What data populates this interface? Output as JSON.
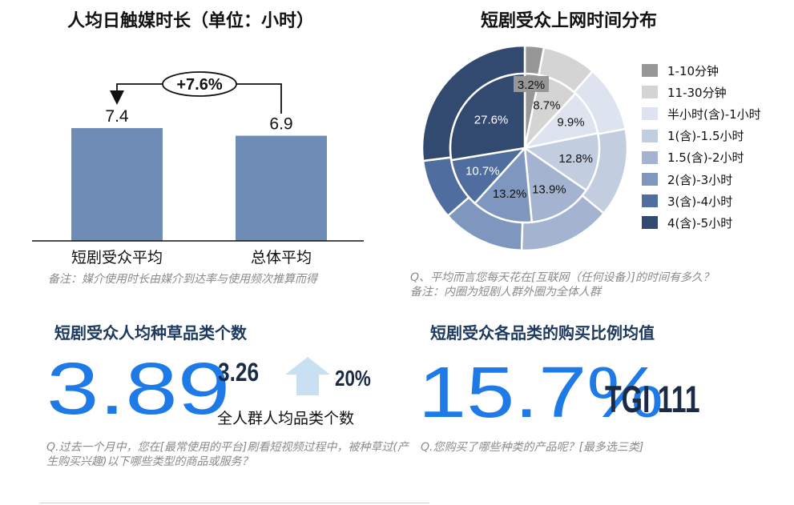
{
  "panel_bar": {
    "title": "人均日触媒时长（单位：小时）",
    "growth_label": "+7.6%",
    "note": "备注：媒介使用时长由媒介到达率与使用频次推算而得"
  },
  "panel_pie": {
    "title": "短剧受众上网时间分布",
    "note_line1": "Q、平均而言您每天花在[互联网（任何设备）]的时间有多久？",
    "note_line2": "备注：内圈为短剧人群外圈为全体人群"
  },
  "panel_grass": {
    "title": "短剧受众人均种草品类个数",
    "main_value": "3.89",
    "compare_value": "3.26",
    "compare_label": "全人群人均品类个数",
    "lift": "20%",
    "note": "Q.过去一个月中，您在[最常使用的平台]刷看短视频过程中，被种草过(产生购买兴趣)以下哪些类型的商品或服务？"
  },
  "panel_buy": {
    "title": "短剧受众各品类的购买比例均值",
    "main_value": "15.7%",
    "tgi": "TGI 111",
    "note": "Q.您购买了哪些种类的产品呢？[最多选三类]"
  },
  "chart_data": [
    {
      "type": "bar",
      "title": "人均日触媒时长（单位：小时）",
      "categories": [
        "短剧受众平均",
        "总体平均"
      ],
      "values": [
        7.4,
        6.9
      ],
      "value_labels": [
        "7.4",
        "6.9"
      ],
      "ylim": [
        0,
        8.4
      ],
      "color": "#6f8cb7",
      "annotation": "+7.6%"
    },
    {
      "type": "pie",
      "title": "短剧受众上网时间分布",
      "categories": [
        "1-10分钟",
        "11-30分钟",
        "半小时(含)-1小时",
        "1(含)-1.5小时",
        "1.5(含)-2小时",
        "2(含)-3小时",
        "3(含)-4小时",
        "4(含)-5小时"
      ],
      "colors": [
        "#979797",
        "#d4d4d4",
        "#dde4ef",
        "#c3cde0",
        "#a4b4d0",
        "#7f96bf",
        "#506d9f",
        "#334a70"
      ],
      "series": [
        {
          "name": "内圈",
          "values": [
            3.2,
            8.7,
            9.9,
            12.8,
            13.9,
            13.2,
            10.7,
            27.6
          ],
          "labels": [
            "3.2%",
            "8.7%",
            "9.9%",
            "12.8%",
            "13.9%",
            "13.2%",
            "10.7%",
            "27.6%"
          ]
        },
        {
          "name": "外圈",
          "values": [
            3.0,
            8.5,
            10.5,
            14.0,
            14.5,
            13.0,
            9.5,
            27.0
          ]
        }
      ],
      "legend_position": "right"
    }
  ]
}
